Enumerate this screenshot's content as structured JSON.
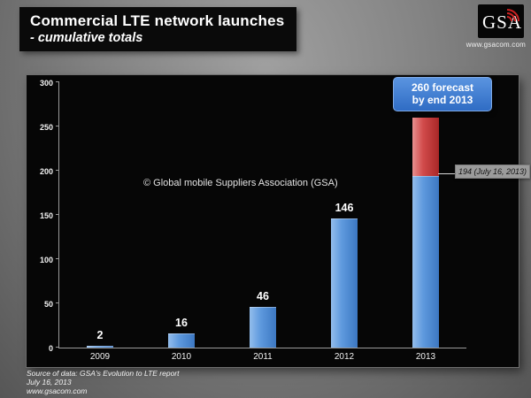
{
  "header": {
    "title": "Commercial LTE network launches",
    "subtitle": "- cumulative totals",
    "logo_text": "GSA",
    "logo_url": "www.gsacom.com"
  },
  "chart_data": {
    "type": "bar",
    "title": "Commercial LTE network launches - cumulative totals",
    "categories": [
      "2009",
      "2010",
      "2011",
      "2012",
      "2013"
    ],
    "series": [
      {
        "name": "Commercial LTE network launches (cumulative)",
        "color": "#4f8fd6",
        "values": [
          2,
          16,
          46,
          146,
          194
        ]
      },
      {
        "name": "Forecast additional by end 2013",
        "color": "#c0392b",
        "values": [
          0,
          0,
          0,
          0,
          66
        ]
      }
    ],
    "bar_labels": [
      "2",
      "16",
      "46",
      "146",
      ""
    ],
    "xlabel": "",
    "ylabel": "",
    "ylim": [
      0,
      300
    ],
    "yticks": [
      0,
      50,
      100,
      150,
      200,
      250,
      300
    ],
    "grid": false,
    "legend": "none",
    "annotations": {
      "forecast_line1": "260 forecast",
      "forecast_line2": "by end 2013",
      "current_label": "194 (July 16, 2013)",
      "watermark": "© Global mobile Suppliers Association (GSA)"
    }
  },
  "footer": {
    "line1": "Source of data: GSA's Evolution to LTE report",
    "line2": "July 16, 2013",
    "line3": "www.gsacom.com"
  },
  "colors": {
    "bar_blue": "#4f8fd6",
    "bar_red": "#c0392b",
    "callout_bg": "#3b7dd8",
    "swoosh_red": "#cc2222"
  }
}
